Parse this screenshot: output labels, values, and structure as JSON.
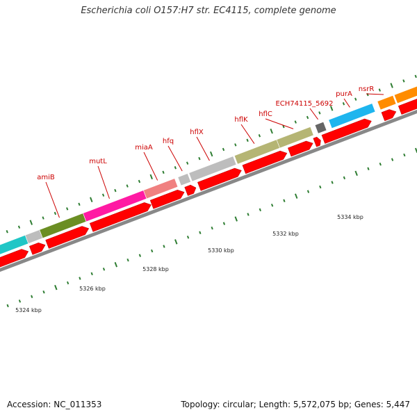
{
  "title": "Escherichia coli O157:H7 str. EC4115, complete genome",
  "footer": {
    "accession": "Accession: NC_011353",
    "stats": "Topology: circular; Length: 5,572,075 bp; Genes: 5,447"
  },
  "genes": [
    {
      "name": "amiB",
      "color": "#6b8e23"
    },
    {
      "name": "mutL",
      "color": "#ff1aa3"
    },
    {
      "name": "miaA",
      "color": "#f08080"
    },
    {
      "name": "hfq",
      "color": "#bdbdbd"
    },
    {
      "name": "hflX",
      "color": "#bdbdbd"
    },
    {
      "name": "hflK",
      "color": "#b5b574"
    },
    {
      "name": "hflC",
      "color": "#b5b574"
    },
    {
      "name": "ECH74115_5692",
      "color": "#666666"
    },
    {
      "name": "purA",
      "color": "#1eb5ee"
    },
    {
      "name": "nsrR",
      "color": "#ff8c00"
    }
  ],
  "kbp_labels": [
    "5324 kbp",
    "5326 kbp",
    "5328 kbp",
    "5330 kbp",
    "5332 kbp",
    "5334 kbp"
  ],
  "colors": {
    "cds": "#ff0000",
    "backbone": "#888888",
    "tick": "#2e7d32",
    "label": "#cc0000",
    "cyan_gene": "#20c6c6"
  }
}
